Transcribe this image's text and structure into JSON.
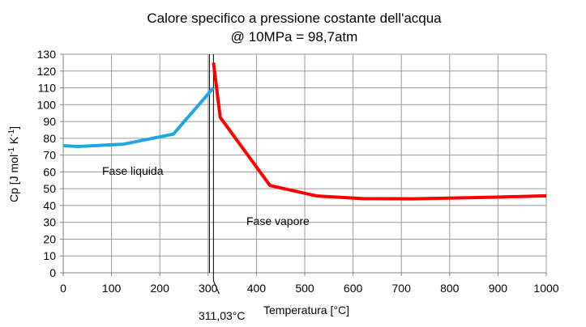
{
  "chart_data": {
    "type": "line",
    "title_line1": "Calore specifico a pressione costante dell'acqua",
    "title_line2": "@ 10MPa = 98,7atm",
    "xlabel": "Temperatura [°C]",
    "ylabel": {
      "parts": [
        {
          "text": "Cp [J mol",
          "sup": false
        },
        {
          "text": "-1",
          "sup": true
        },
        {
          "text": " K",
          "sup": false
        },
        {
          "text": "-1",
          "sup": true
        },
        {
          "text": "]",
          "sup": false
        }
      ]
    },
    "xlim": [
      0,
      1000
    ],
    "ylim": [
      0,
      130
    ],
    "x_ticks": [
      "0",
      "100",
      "200",
      "300",
      "400",
      "500",
      "600",
      "700",
      "800",
      "900",
      "1000"
    ],
    "y_ticks": [
      "0",
      "10",
      "20",
      "30",
      "40",
      "50",
      "60",
      "70",
      "80",
      "90",
      "100",
      "110",
      "120",
      "130"
    ],
    "grid": true,
    "series": [
      {
        "color": "#1ea7e1",
        "points": [
          [
            0,
            75.6
          ],
          [
            30,
            75.1
          ],
          [
            125,
            76.5
          ],
          [
            228,
            82.5
          ],
          [
            311.03,
            110
          ]
        ]
      },
      {
        "color": "#ff0000",
        "points": [
          [
            311.03,
            125
          ],
          [
            325,
            92.5
          ],
          [
            428,
            51.9
          ],
          [
            525,
            45.7
          ],
          [
            620,
            44.1
          ],
          [
            725,
            44.0
          ],
          [
            800,
            44.4
          ],
          [
            900,
            45.0
          ],
          [
            1000,
            45.8
          ]
        ]
      }
    ],
    "annotations": {
      "liquid": "Fase liquida",
      "vapor": "Fase vapore",
      "transition": "311,03°C"
    },
    "transition_x": 311.03
  }
}
